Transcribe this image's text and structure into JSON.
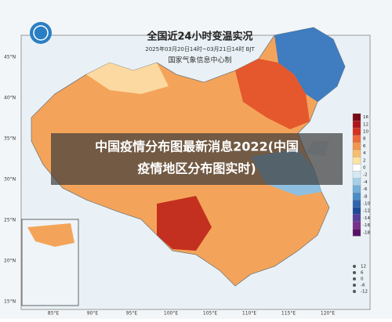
{
  "header": {
    "title": "全国近24小时变温实况",
    "subtitle": "2025年03月20日14时~03月21日14时 BJT",
    "org": "国家气象信息中心制"
  },
  "caption": {
    "line1": "中国疫情分布图最新消息2022(中国",
    "line2": "疫情地区分布图实时)"
  },
  "lat_labels": [
    "45°N",
    "40°N",
    "35°N",
    "30°N",
    "25°N",
    "20°N",
    "15°N"
  ],
  "lon_labels": [
    "85°E",
    "90°E",
    "95°E",
    "100°E",
    "105°E",
    "110°E",
    "115°E",
    "120°E"
  ],
  "legend": [
    {
      "label": 16,
      "color": "#7a0a14"
    },
    {
      "label": 12,
      "color": "#b0151c"
    },
    {
      "label": 10,
      "color": "#d7301f"
    },
    {
      "label": 8,
      "color": "#ef6a3a"
    },
    {
      "label": 6,
      "color": "#f4964e"
    },
    {
      "label": 4,
      "color": "#f9bd6c"
    },
    {
      "label": 2,
      "color": "#fde3a0"
    },
    {
      "label": 0,
      "color": "#ffffff"
    },
    {
      "label": -2,
      "color": "#d3e9f5"
    },
    {
      "label": -4,
      "color": "#a6cfe8"
    },
    {
      "label": -6,
      "color": "#73afd8"
    },
    {
      "label": -8,
      "color": "#4a8cc6"
    },
    {
      "label": -10,
      "color": "#2c66b0"
    },
    {
      "label": -12,
      "color": "#1f4a98"
    },
    {
      "label": -14,
      "color": "#5a3c9c"
    },
    {
      "label": -16,
      "color": "#7a2f8c"
    },
    {
      "label": -18,
      "color": "#5a1068"
    }
  ],
  "scale_labels": [
    12,
    6,
    0,
    -6,
    -12
  ]
}
